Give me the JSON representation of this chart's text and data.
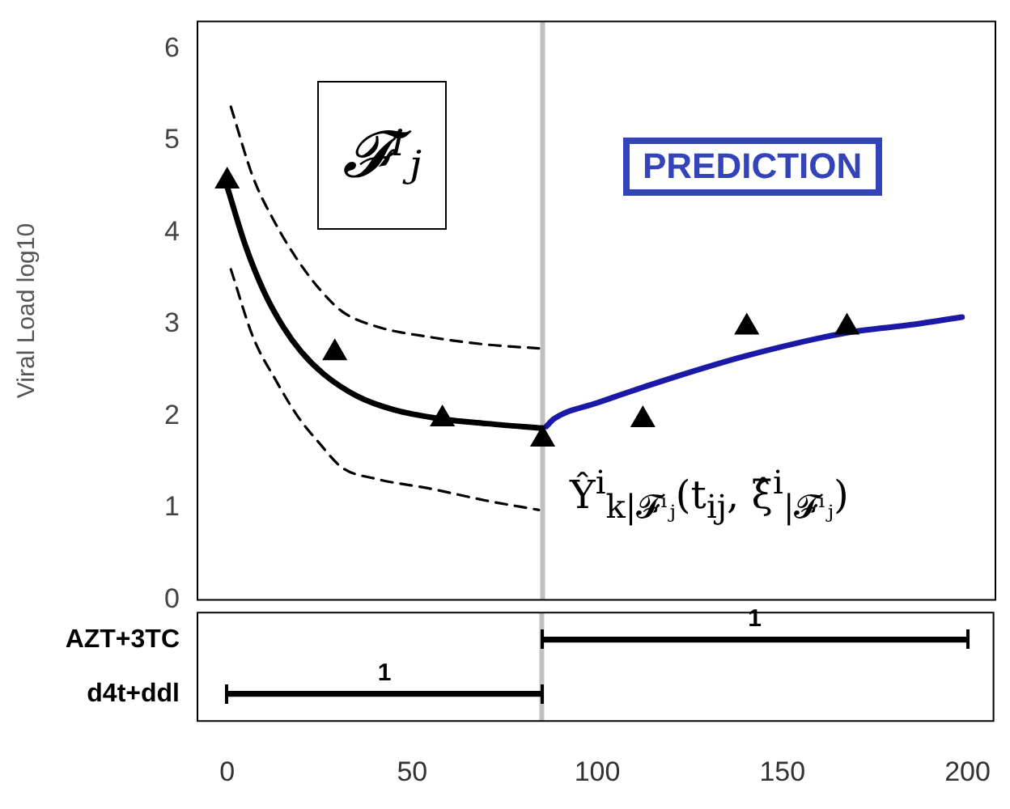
{
  "chart_data": [
    {
      "type": "line",
      "ylabel": "Viral Load log10",
      "xlim": [
        -8,
        207
      ],
      "ylim": [
        0,
        6.3
      ],
      "yticks": [
        0,
        1,
        2,
        3,
        4,
        5,
        6
      ],
      "tick_labels": "y",
      "grid": false,
      "legend": false,
      "series": [
        {
          "type": "line",
          "line_style": "dashed",
          "marker": "none",
          "color": "#000000",
          "x": [
            1,
            7,
            13,
            19,
            25,
            31,
            40,
            55,
            70,
            84
          ],
          "values": [
            5.37,
            4.6,
            4.1,
            3.7,
            3.38,
            3.14,
            2.98,
            2.86,
            2.78,
            2.74
          ]
        },
        {
          "type": "line",
          "line_style": "dashed",
          "marker": "none",
          "color": "#000000",
          "x": [
            1,
            7,
            13,
            19,
            25,
            31,
            40,
            55,
            70,
            84
          ],
          "values": [
            3.6,
            2.86,
            2.4,
            2.0,
            1.7,
            1.44,
            1.32,
            1.21,
            1.08,
            0.98
          ]
        },
        {
          "type": "line",
          "line_style": "solid",
          "marker": "none",
          "color": "#000000",
          "x": [
            0,
            5,
            10,
            15,
            20,
            26,
            35,
            45,
            58,
            70,
            85
          ],
          "values": [
            4.5,
            3.85,
            3.35,
            2.98,
            2.7,
            2.46,
            2.22,
            2.07,
            1.97,
            1.92,
            1.87
          ]
        },
        {
          "type": "line",
          "line_style": "solid",
          "marker": "none",
          "color": "#1a1aa6",
          "x": [
            86,
            88,
            100,
            120,
            140,
            167,
            185,
            198
          ],
          "values": [
            1.89,
            1.97,
            2.15,
            2.42,
            2.66,
            2.91,
            3.0,
            3.08
          ]
        },
        {
          "type": "scatter",
          "marker": "triangle",
          "color": "#000000",
          "x": [
            0,
            29,
            58,
            85,
            112,
            140,
            167
          ],
          "values": [
            4.56,
            2.69,
            1.97,
            1.75,
            1.96,
            2.97,
            2.97
          ]
        }
      ],
      "ref_lines": [
        {
          "axis": "x",
          "value": 85,
          "color": "#c0c0c0"
        }
      ],
      "annotations": [
        "𝓕ⁱⱼ",
        "PREDICTION",
        "Ŷ$^{i}$$_{k|𝓕ⁱⱼ}$(t$_{ij}$, ξ̂$^{i}$$_{|𝓕ⁱⱼ}$)"
      ]
    },
    {
      "type": "bar",
      "orientation": "horizontal",
      "categories": [
        "AZT+3TC",
        "d4t+ddl"
      ],
      "base": [
        85,
        0
      ],
      "values": [
        115,
        85
      ],
      "color": "#000000",
      "annotations": [
        {
          "text": "1",
          "x": 142.5,
          "y": "AZT+3TC"
        },
        {
          "text": "1",
          "x": 42.5,
          "y": "d4t+ddl"
        }
      ],
      "xlim": [
        -8,
        207
      ],
      "xticks": [
        0,
        50,
        100,
        150,
        200
      ],
      "grid": false,
      "legend": false,
      "ref_lines": [
        {
          "axis": "x",
          "value": 85,
          "color": "#c0c0c0"
        }
      ]
    }
  ]
}
